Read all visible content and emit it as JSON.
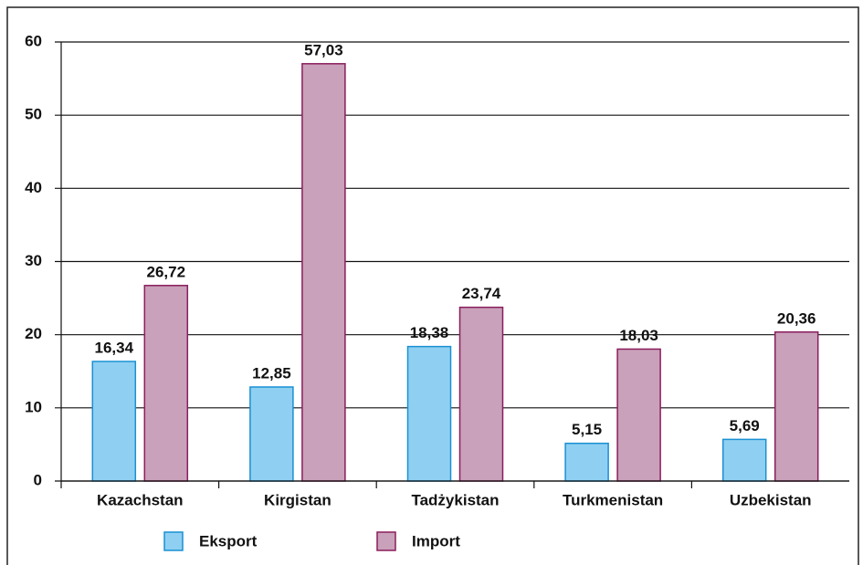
{
  "chart_data": {
    "type": "bar",
    "categories": [
      "Kazachstan",
      "Kirgistan",
      "Tadżykistan",
      "Turkmenistan",
      "Uzbekistan"
    ],
    "series": [
      {
        "name": "Eksport",
        "color": "#8fd0f2",
        "stroke": "#1a90d2",
        "values": [
          16.34,
          12.85,
          18.38,
          5.15,
          5.69
        ],
        "value_labels": [
          "16,34",
          "12,85",
          "18,38",
          "5,15",
          "5,69"
        ]
      },
      {
        "name": "Import",
        "color": "#c9a1ba",
        "stroke": "#8a1d5c",
        "values": [
          26.72,
          57.03,
          23.74,
          18.03,
          20.36
        ],
        "value_labels": [
          "26,72",
          "57,03",
          "23,74",
          "18,03",
          "20,36"
        ]
      }
    ],
    "ylim": [
      0,
      60
    ],
    "yticks": [
      0,
      10,
      20,
      30,
      40,
      50,
      60
    ],
    "grid": true,
    "legend": "bottom"
  }
}
